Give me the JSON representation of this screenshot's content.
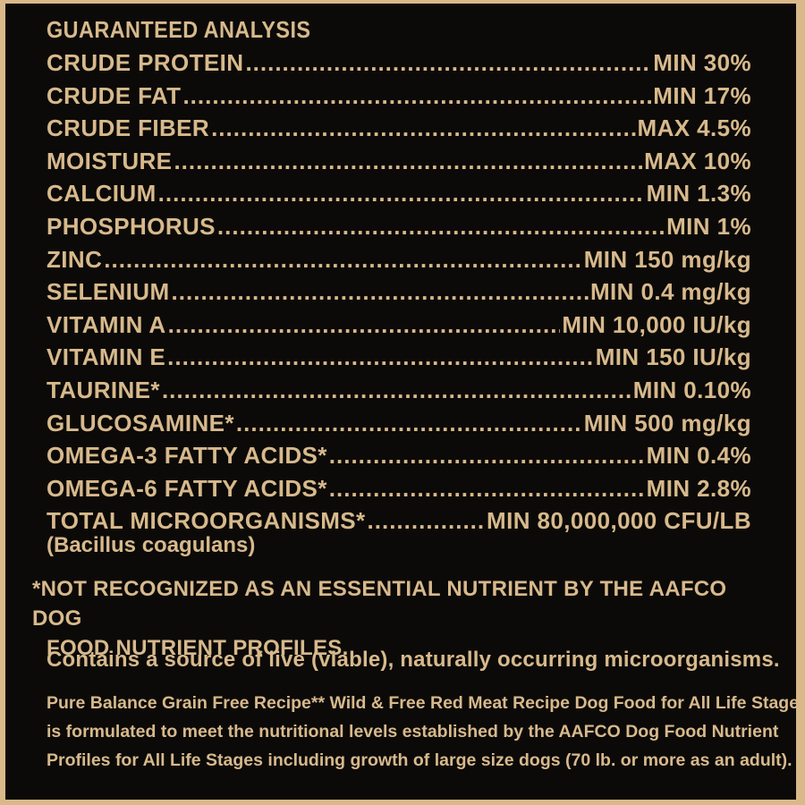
{
  "title": "GUARANTEED ANALYSIS",
  "rows": [
    {
      "name": "CRUDE PROTEIN",
      "value": "MIN 30%"
    },
    {
      "name": "CRUDE FAT",
      "value": "MIN 17%"
    },
    {
      "name": "CRUDE FIBER",
      "value": "MAX 4.5%"
    },
    {
      "name": "MOISTURE",
      "value": "MAX 10%"
    },
    {
      "name": "CALCIUM",
      "value": "MIN 1.3%"
    },
    {
      "name": "PHOSPHORUS",
      "value": "MIN 1%"
    },
    {
      "name": "ZINC",
      "value": "MIN 150 mg/kg"
    },
    {
      "name": "SELENIUM",
      "value": "MIN 0.4 mg/kg"
    },
    {
      "name": "VITAMIN A",
      "value": "MIN 10,000 IU/kg"
    },
    {
      "name": "VITAMIN E",
      "value": "MIN 150 IU/kg"
    },
    {
      "name": "TAURINE*",
      "value": "MIN 0.10%"
    },
    {
      "name": "GLUCOSAMINE*",
      "value": "MIN 500 mg/kg"
    },
    {
      "name": "OMEGA-3 FATTY ACIDS*",
      "value": "MIN 0.4%"
    },
    {
      "name": "OMEGA-6 FATTY ACIDS*",
      "value": "MIN 2.8%"
    },
    {
      "name": "TOTAL MICROORGANISMS*",
      "value": "MIN 80,000,000 CFU/LB"
    }
  ],
  "microorganism_source": "(Bacillus coagulans)",
  "footnote": {
    "line1": "*NOT RECOGNIZED AS AN ESSENTIAL NUTRIENT BY THE AAFCO DOG",
    "line2": "FOOD NUTRIENT PROFILES."
  },
  "live_statement": "Contains a source of live (viable), naturally occurring microorganisms.",
  "aafco_statement": {
    "line1": "Pure Balance Grain Free Recipe** Wild & Free Red Meat Recipe Dog Food for All Life Stages",
    "line2": "is formulated to meet the nutritional levels established by the AAFCO Dog Food Nutrient",
    "line3": "Profiles for All Life Stages including growth of large size dogs (70 lb. or more as an adult)."
  },
  "colors": {
    "background": "#0c0a08",
    "text": "#d7b98c",
    "border": "#d9b98a"
  }
}
